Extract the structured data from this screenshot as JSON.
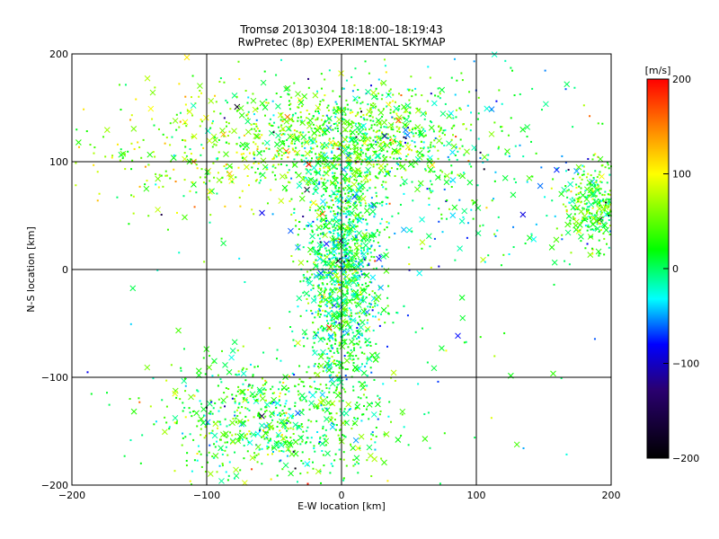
{
  "chart_data": {
    "type": "scatter",
    "title": "Tromsø 20130304 18:18:00–18:19:43",
    "subtitle": "RwPretec (8p) EXPERIMENTAL SKYMAP",
    "xlabel": "E-W location [km]",
    "ylabel": "N-S location [km]",
    "xlim": [
      -200,
      200
    ],
    "ylim": [
      -200,
      200
    ],
    "x_ticks": [
      -200,
      -100,
      0,
      100,
      200
    ],
    "y_ticks": [
      -200,
      -100,
      0,
      100,
      200
    ],
    "grid": true,
    "colorbar": {
      "label": "[m/s]",
      "range": [
        -200,
        200
      ],
      "ticks": [
        200,
        100,
        0,
        -100,
        -200
      ],
      "stops": [
        "#000000",
        "#2a0070",
        "#0000ff",
        "#00ffff",
        "#00ff00",
        "#ffff00",
        "#ff0000"
      ]
    },
    "clusters": [
      {
        "x": 0,
        "y": 0,
        "sx": 14,
        "sy": 60,
        "n": 1400,
        "velocity": 10
      },
      {
        "x": 5,
        "y": 120,
        "sx": 45,
        "sy": 25,
        "n": 900,
        "velocity": 40
      },
      {
        "x": -50,
        "y": -140,
        "sx": 45,
        "sy": 28,
        "n": 700,
        "velocity": 20
      },
      {
        "x": 185,
        "y": 60,
        "sx": 12,
        "sy": 20,
        "n": 320,
        "velocity": 30
      },
      {
        "x": -110,
        "y": 110,
        "sx": 40,
        "sy": 35,
        "n": 250,
        "velocity": 60
      },
      {
        "x": 80,
        "y": 100,
        "sx": 60,
        "sy": 60,
        "n": 260,
        "velocity": -10
      },
      {
        "x": 0,
        "y": 0,
        "sx": 120,
        "sy": 120,
        "n": 160,
        "velocity": 0
      }
    ]
  }
}
